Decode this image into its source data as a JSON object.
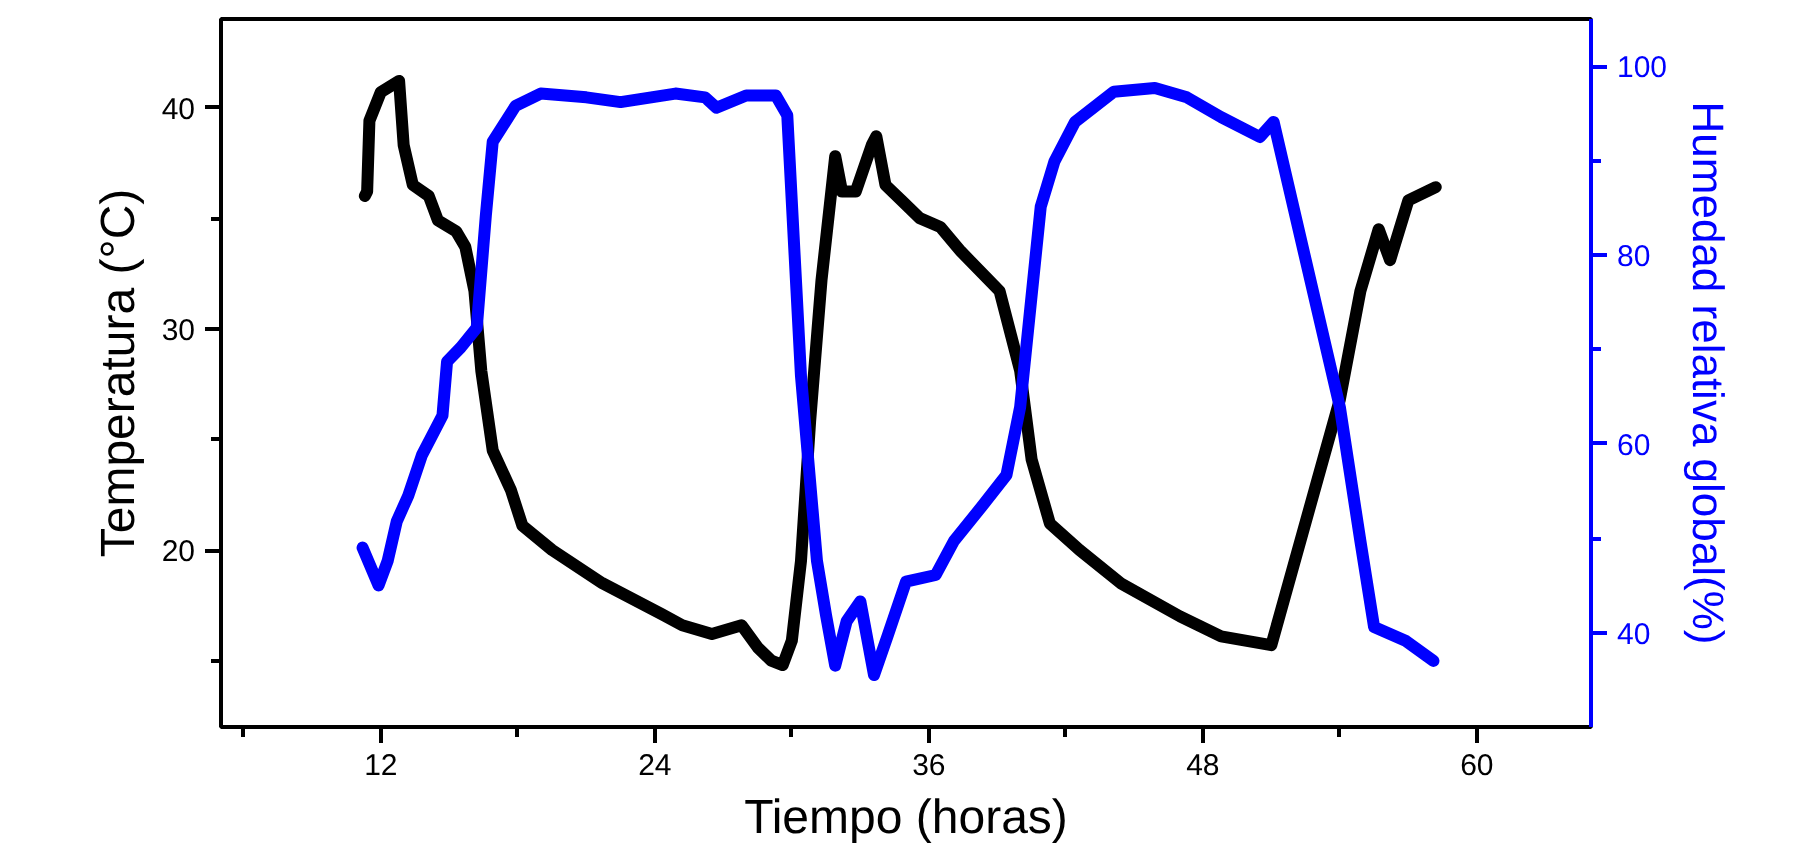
{
  "chart_data": {
    "type": "line",
    "xlabel": "Tiempo (horas)",
    "ylabel": "Temperatura (°C)",
    "y2label": "Humedad relativa global(%)",
    "xlim": [
      5,
      65
    ],
    "xticks": [
      {
        "value": 6,
        "label": null
      },
      12,
      {
        "value": 18,
        "label": null
      },
      24,
      {
        "value": 30,
        "label": null
      },
      36,
      {
        "value": 42,
        "label": null
      },
      48,
      {
        "value": 54,
        "label": null
      },
      60
    ],
    "ylim": [
      12,
      44
    ],
    "yticks": [
      {
        "value": 15,
        "label": null
      },
      20,
      {
        "value": 25,
        "label": null
      },
      30,
      {
        "value": 35,
        "label": null
      },
      40
    ],
    "y2lim": [
      30,
      105
    ],
    "y2ticks": [
      40,
      {
        "value": 50,
        "label": null
      },
      60,
      {
        "value": 70,
        "label": null
      },
      80,
      {
        "value": 90,
        "label": null
      },
      100
    ],
    "grid": false,
    "line_style": "solid",
    "series": [
      {
        "color": "#000000",
        "x": [
          11.3,
          11.4,
          11.5,
          12.0,
          12.8,
          13.0,
          13.4,
          14.1,
          14.5,
          15.3,
          15.7,
          16.1,
          16.4,
          16.9,
          17.7,
          18.2,
          19.5,
          21.7,
          24.3,
          25.2,
          26.5,
          27.8,
          28.5,
          29.1,
          29.6,
          30.0,
          30.4,
          30.8,
          31.3,
          31.9,
          32.2,
          32.8,
          33.5,
          33.7,
          34.1,
          34.8,
          35.6,
          36.5,
          37.4,
          39.1,
          40.0,
          40.5,
          41.3,
          42.6,
          44.4,
          47.0,
          48.8,
          51.0,
          54.0,
          54.9,
          55.7,
          56.2,
          57.0,
          58.2
        ],
        "values": [
          36.0,
          36.2,
          39.4,
          40.7,
          41.2,
          38.3,
          36.5,
          36.0,
          34.9,
          34.4,
          33.7,
          31.7,
          28.1,
          24.5,
          22.7,
          21.1,
          20.0,
          18.5,
          17.1,
          16.6,
          16.2,
          16.6,
          15.6,
          15.0,
          14.8,
          15.9,
          19.5,
          25.8,
          32.2,
          37.8,
          36.2,
          36.2,
          38.3,
          38.7,
          36.5,
          35.8,
          35.0,
          34.6,
          33.5,
          31.7,
          28.1,
          24.1,
          21.2,
          20.0,
          18.5,
          17.0,
          16.1,
          15.7,
          26.8,
          31.7,
          34.5,
          33.1,
          35.8,
          36.4
        ]
      },
      {
        "color": "#0000ff",
        "axis": "y2",
        "x": [
          11.2,
          11.9,
          12.3,
          12.7,
          13.2,
          13.8,
          14.7,
          14.9,
          15.5,
          16.2,
          16.6,
          16.9,
          17.9,
          19.0,
          21.0,
          22.5,
          24.9,
          26.2,
          26.7,
          28.0,
          29.3,
          29.8,
          30.4,
          31.1,
          31.5,
          31.9,
          32.4,
          33.0,
          33.6,
          34.2,
          35.0,
          36.3,
          37.1,
          38.3,
          39.4,
          40.0,
          40.9,
          41.5,
          42.4,
          44.1,
          45.9,
          47.3,
          48.8,
          50.5,
          51.1,
          54.0,
          54.9,
          55.5,
          56.9,
          58.1
        ],
        "values": [
          49.0,
          45.0,
          47.6,
          51.8,
          54.5,
          58.8,
          63.0,
          68.7,
          70.2,
          72.3,
          84.2,
          92.0,
          95.8,
          97.1,
          96.7,
          96.2,
          97.1,
          96.7,
          95.6,
          96.9,
          96.9,
          94.8,
          67.2,
          47.6,
          41.8,
          36.5,
          41.2,
          43.3,
          35.5,
          39.7,
          45.4,
          46.1,
          49.7,
          53.3,
          56.7,
          63.9,
          85.1,
          89.9,
          94.1,
          97.3,
          97.7,
          96.7,
          94.6,
          92.5,
          94.1,
          63.9,
          49.7,
          40.6,
          39.1,
          37.0
        ]
      }
    ]
  }
}
